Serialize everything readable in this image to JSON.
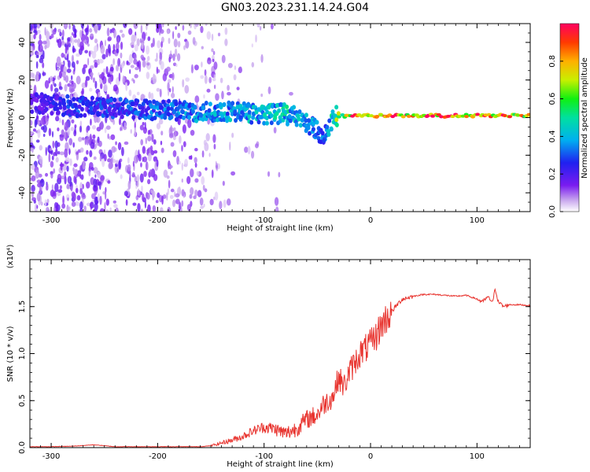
{
  "title": "GN03.2023.231.14.24.G04",
  "colors": {
    "snr_line": "#e8332e",
    "axes": "#000000",
    "spectrogram_background": "#ffffff"
  },
  "chart_data": [
    {
      "type": "heatmap",
      "name": "spectrogram",
      "xlabel": "Height of straight line (km)",
      "ylabel": "Frequency (Hz)",
      "xlim": [
        -320,
        150
      ],
      "ylim": [
        -50,
        50
      ],
      "xticks": [
        -300,
        -200,
        -100,
        0,
        100
      ],
      "xtick_labels": [
        "-300",
        "-200",
        "-100",
        "0",
        "100"
      ],
      "yticks": [
        -40,
        -20,
        0,
        20,
        40
      ],
      "ytick_labels": [
        "-40",
        "-20",
        "0",
        "20",
        "40"
      ],
      "grid": false,
      "colormap": "rainbow (violet to red)",
      "colorbar": {
        "label": "Normalized spectral amplitude",
        "range": [
          0.0,
          1.0
        ],
        "ticks": [
          0.0,
          0.2,
          0.4,
          0.6,
          0.8
        ],
        "tick_labels": [
          "0.0",
          "0.2",
          "0.4",
          "0.6",
          "0.8"
        ]
      },
      "ridge": {
        "x": [
          -320,
          -280,
          -240,
          -200,
          -160,
          -130,
          -100,
          -80,
          -60,
          -45,
          -35,
          -20,
          0,
          50,
          100,
          150
        ],
        "freq": [
          8,
          6,
          5,
          4,
          3,
          3,
          2,
          2,
          -3,
          -10,
          1,
          1,
          1,
          1,
          1,
          1
        ],
        "amplitude": [
          0.2,
          0.3,
          0.3,
          0.35,
          0.4,
          0.45,
          0.45,
          0.5,
          0.4,
          0.35,
          0.6,
          0.95,
          0.95,
          0.95,
          0.95,
          0.9
        ]
      }
    },
    {
      "type": "line",
      "name": "snr",
      "xlabel": "Height of straight line (km)",
      "ylabel": "SNR (10 * v/v)",
      "y_multiplier": "(x10⁴)",
      "xlim": [
        -320,
        150
      ],
      "ylim": [
        0,
        2.0
      ],
      "xticks": [
        -300,
        -200,
        -100,
        0,
        100
      ],
      "xtick_labels": [
        "-300",
        "-200",
        "-100",
        "0",
        "100"
      ],
      "yticks": [
        0.0,
        0.5,
        1.0,
        1.5
      ],
      "ytick_labels": [
        "0.0",
        "0.5",
        "1.0",
        "1.5"
      ],
      "grid": false,
      "x": [
        -320,
        -300,
        -280,
        -260,
        -240,
        -220,
        -200,
        -180,
        -160,
        -150,
        -140,
        -130,
        -120,
        -110,
        -100,
        -90,
        -80,
        -70,
        -60,
        -50,
        -45,
        -40,
        -35,
        -30,
        -25,
        -20,
        -15,
        -10,
        -5,
        0,
        5,
        10,
        15,
        20,
        25,
        30,
        40,
        50,
        60,
        70,
        80,
        90,
        95,
        100,
        105,
        110,
        115,
        117,
        120,
        125,
        130,
        140,
        150
      ],
      "y": [
        0.01,
        0.01,
        0.015,
        0.03,
        0.01,
        0.01,
        0.01,
        0.01,
        0.01,
        0.02,
        0.05,
        0.08,
        0.12,
        0.18,
        0.22,
        0.2,
        0.15,
        0.2,
        0.3,
        0.35,
        0.45,
        0.5,
        0.55,
        0.75,
        0.65,
        0.8,
        0.9,
        1.0,
        1.05,
        1.1,
        1.18,
        1.3,
        1.38,
        1.45,
        1.52,
        1.58,
        1.61,
        1.63,
        1.63,
        1.62,
        1.61,
        1.62,
        1.6,
        1.58,
        1.55,
        1.6,
        1.55,
        1.7,
        1.55,
        1.5,
        1.52,
        1.52,
        1.51
      ]
    }
  ]
}
